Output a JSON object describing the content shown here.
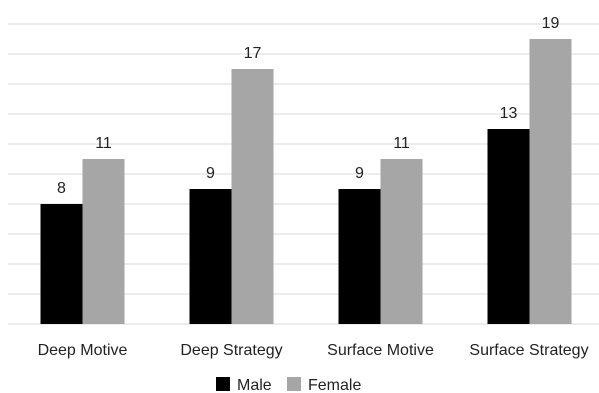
{
  "chart_data": {
    "type": "bar",
    "title": "",
    "xlabel": "",
    "ylabel": "",
    "categories": [
      "Deep Motive",
      "Deep Strategy",
      "Surface Motive",
      "Surface Strategy"
    ],
    "series": [
      {
        "name": "Male",
        "values": [
          8,
          9,
          9,
          13
        ],
        "color": "#000000"
      },
      {
        "name": "Female",
        "values": [
          11,
          17,
          11,
          19
        ],
        "color": "#a6a6a6"
      }
    ],
    "ylim": [
      0,
      20
    ],
    "grid": true,
    "legend": "bottom",
    "data_labels": true
  }
}
